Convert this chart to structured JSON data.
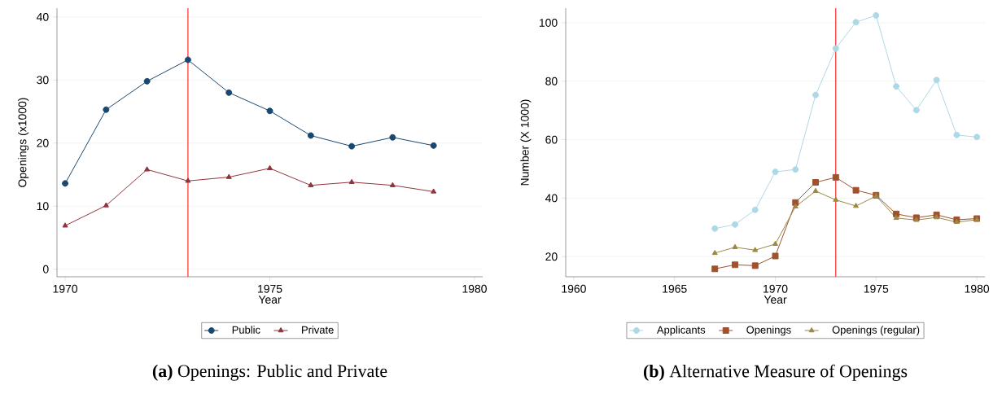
{
  "chart_data": [
    {
      "type": "line",
      "title": "**(a)** Openings: Public and Private",
      "xlabel": "Year",
      "ylabel": "Openings (x1000)",
      "x": [
        1970,
        1971,
        1972,
        1973,
        1974,
        1975,
        1976,
        1977,
        1978,
        1979
      ],
      "series": [
        {
          "name": "Public",
          "color": "#1a476f",
          "marker": "circle",
          "values": [
            13.6,
            25.3,
            29.8,
            33.2,
            28.0,
            25.1,
            21.2,
            19.5,
            20.9,
            19.6
          ]
        },
        {
          "name": "Private",
          "color": "#90353b",
          "marker": "triangle",
          "values": [
            6.9,
            10.1,
            15.8,
            14.0,
            14.6,
            16.0,
            13.3,
            13.8,
            13.3,
            12.3
          ]
        }
      ],
      "xlim": [
        1969.8,
        1980.2
      ],
      "ylim": [
        -1.2,
        41.4
      ],
      "xticks": [
        1970,
        1975,
        1980
      ],
      "yticks": [
        0,
        10,
        20,
        30,
        40
      ],
      "ref_lines": [
        {
          "axis": "x",
          "value": 1973,
          "color": "#ff0000"
        }
      ],
      "grid": "y",
      "legend": "bottom"
    },
    {
      "type": "line",
      "title": "**(b)** Alternative Measure of Openings",
      "xlabel": "Year",
      "ylabel": "Number (X 1000)",
      "x": [
        1967,
        1968,
        1969,
        1970,
        1971,
        1972,
        1973,
        1974,
        1975,
        1976,
        1977,
        1978,
        1979,
        1980
      ],
      "series": [
        {
          "name": "Applicants",
          "color": "#add8e6",
          "marker": "circle",
          "values": [
            29.6,
            31.0,
            36.0,
            49.0,
            49.8,
            75.3,
            91.2,
            100.2,
            102.5,
            78.2,
            70.1,
            80.4,
            61.6,
            60.9
          ]
        },
        {
          "name": "Openings",
          "color": "#a0522d",
          "marker": "square",
          "values": [
            15.8,
            17.2,
            16.9,
            20.2,
            38.5,
            45.4,
            47.1,
            42.7,
            41.0,
            34.6,
            33.3,
            34.3,
            32.6,
            33.0
          ]
        },
        {
          "name": "Openings (regular)",
          "color": "#9c8847",
          "marker": "triangle",
          "values": [
            21.2,
            23.2,
            22.2,
            24.3,
            37.1,
            42.4,
            39.4,
            37.3,
            40.7,
            33.2,
            32.5,
            33.4,
            31.8,
            32.6
          ]
        }
      ],
      "xlim": [
        1959.6,
        1980.4
      ],
      "ylim": [
        13.1,
        105.0
      ],
      "xticks": [
        1960,
        1965,
        1970,
        1975,
        1980
      ],
      "yticks": [
        20,
        40,
        60,
        80,
        100
      ],
      "ref_lines": [
        {
          "axis": "x",
          "value": 1973,
          "color": "#ff0000"
        }
      ],
      "grid": "y",
      "legend": "bottom"
    }
  ]
}
